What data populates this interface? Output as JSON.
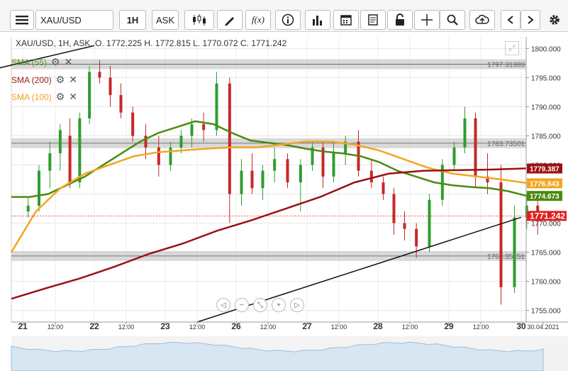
{
  "toolbar": {
    "symbol": "XAU/USD",
    "timeframe": "1H",
    "price_side": "ASK",
    "fx_label": "f(x)"
  },
  "chart_header": {
    "ohlc_text": "XAU/USD, 1H, ASK,   O. 1772.225 H. 1772.815 L. 1770.072 C. 1771.242"
  },
  "indicators": [
    {
      "label": "SMA (55)",
      "color": "#5a9a1a"
    },
    {
      "label": "SMA (200)",
      "color": "#a01818"
    },
    {
      "label": "SMA (100)",
      "color": "#f0a020"
    }
  ],
  "price_tags": [
    {
      "value": "1779.387",
      "price": 1779.387,
      "color": "#9b1111"
    },
    {
      "value": "1776.843",
      "price": 1776.843,
      "color": "#f3a51f"
    },
    {
      "value": "1774.673",
      "price": 1774.673,
      "color": "#4a8a10"
    },
    {
      "value": "1771.242",
      "price": 1771.242,
      "color": "#e21d1d"
    }
  ],
  "chart_data": {
    "type": "candlestick",
    "symbol": "XAU/USD",
    "interval": "1H",
    "side": "ASK",
    "ylim": [
      1753,
      1802
    ],
    "y_ticks": [
      "1800.000",
      "1795.000",
      "1790.000",
      "1785.000",
      "1780.000",
      "1775.000",
      "1770.000",
      "1765.000",
      "1760.000",
      "1755.000"
    ],
    "x_ticks": [
      "21",
      "12:00",
      "22",
      "12:00",
      "23",
      "12:00",
      "26",
      "12:00",
      "27",
      "12:00",
      "28",
      "12:00",
      "29",
      "12:00",
      "30",
      "30.04.2021"
    ],
    "horizontal_levels": [
      {
        "label": "1797.31383",
        "price": 1797.31383
      },
      {
        "label": "1783.73501",
        "price": 1783.73501
      },
      {
        "label": "1764.35451",
        "price": 1764.35451
      }
    ],
    "series": [
      {
        "name": "SMA (55)",
        "values": [
          1774.5,
          1774.5,
          1775,
          1776.5,
          1778,
          1780,
          1782,
          1784,
          1785.5,
          1786.5,
          1787.5,
          1787,
          1785.5,
          1784.2,
          1783.8,
          1783.4,
          1782.8,
          1782.3,
          1782,
          1781.5,
          1780.5,
          1779,
          1778,
          1777,
          1776.5,
          1776.2,
          1776,
          1775.5,
          1774.7
        ]
      },
      {
        "name": "SMA (100)",
        "values": [
          1765,
          1772,
          1776,
          1778.5,
          1780,
          1781.5,
          1782.2,
          1782.5,
          1782.8,
          1783,
          1783,
          1783.5,
          1784,
          1784,
          1783.5,
          1782.5,
          1781,
          1779.5,
          1778.5,
          1778,
          1777.5,
          1776.9
        ]
      },
      {
        "name": "SMA (200)",
        "values": [
          1757,
          1758.8,
          1760.5,
          1762.5,
          1764.7,
          1766.5,
          1768.7,
          1770.5,
          1772.5,
          1774.5,
          1777,
          1778.5,
          1779,
          1779.1,
          1779.2,
          1779.4
        ]
      }
    ],
    "trendlines": [
      {
        "from": [
          "21",
          1796
        ],
        "to": [
          "22",
          1800.5
        ]
      },
      {
        "from": [
          "23 12:00",
          1753
        ],
        "to": [
          "30",
          1771
        ]
      }
    ],
    "ohlc": [
      {
        "x": "21",
        "o": 1772,
        "h": 1774.5,
        "l": 1771,
        "c": 1773
      },
      {
        "x": "21",
        "o": 1773,
        "h": 1780,
        "l": 1772,
        "c": 1779
      },
      {
        "x": "21",
        "o": 1779,
        "h": 1784,
        "l": 1776,
        "c": 1782
      },
      {
        "x": "21 12:00",
        "o": 1782,
        "h": 1787,
        "l": 1779,
        "c": 1786
      },
      {
        "x": "21 12:00",
        "o": 1785,
        "h": 1788,
        "l": 1776,
        "c": 1777
      },
      {
        "x": "21 12:00",
        "o": 1777,
        "h": 1789,
        "l": 1776,
        "c": 1788
      },
      {
        "x": "21 12:00",
        "o": 1788,
        "h": 1797,
        "l": 1787,
        "c": 1796
      },
      {
        "x": "22",
        "o": 1796,
        "h": 1798,
        "l": 1794,
        "c": 1795
      },
      {
        "x": "22",
        "o": 1795,
        "h": 1797,
        "l": 1790,
        "c": 1792
      },
      {
        "x": "22",
        "o": 1792,
        "h": 1794,
        "l": 1788,
        "c": 1789
      },
      {
        "x": "22 12:00",
        "o": 1789,
        "h": 1790,
        "l": 1784,
        "c": 1785
      },
      {
        "x": "22 12:00",
        "o": 1785,
        "h": 1787,
        "l": 1781,
        "c": 1783
      },
      {
        "x": "22 12:00",
        "o": 1783,
        "h": 1785,
        "l": 1778,
        "c": 1780
      },
      {
        "x": "23",
        "o": 1780,
        "h": 1784,
        "l": 1779,
        "c": 1783
      },
      {
        "x": "23",
        "o": 1783,
        "h": 1786,
        "l": 1782,
        "c": 1785
      },
      {
        "x": "23",
        "o": 1785,
        "h": 1788,
        "l": 1783,
        "c": 1787
      },
      {
        "x": "23 12:00",
        "o": 1787,
        "h": 1789,
        "l": 1784,
        "c": 1786
      },
      {
        "x": "23 12:00",
        "o": 1786,
        "h": 1796,
        "l": 1785,
        "c": 1794
      },
      {
        "x": "23 12:00",
        "o": 1794,
        "h": 1795,
        "l": 1770,
        "c": 1775
      },
      {
        "x": "26",
        "o": 1775,
        "h": 1781,
        "l": 1773,
        "c": 1779
      },
      {
        "x": "26",
        "o": 1779,
        "h": 1782,
        "l": 1775,
        "c": 1776
      },
      {
        "x": "26",
        "o": 1776,
        "h": 1780,
        "l": 1774,
        "c": 1779
      },
      {
        "x": "26 12:00",
        "o": 1779,
        "h": 1783,
        "l": 1777,
        "c": 1781
      },
      {
        "x": "26 12:00",
        "o": 1781,
        "h": 1782,
        "l": 1776,
        "c": 1777
      },
      {
        "x": "26 12:00",
        "o": 1777,
        "h": 1781,
        "l": 1772,
        "c": 1780
      },
      {
        "x": "27",
        "o": 1780,
        "h": 1784,
        "l": 1779,
        "c": 1783
      },
      {
        "x": "27",
        "o": 1783,
        "h": 1784,
        "l": 1776,
        "c": 1778
      },
      {
        "x": "27",
        "o": 1778,
        "h": 1784,
        "l": 1777,
        "c": 1782
      },
      {
        "x": "27 12:00",
        "o": 1782,
        "h": 1785,
        "l": 1780,
        "c": 1784
      },
      {
        "x": "27 12:00",
        "o": 1784,
        "h": 1786,
        "l": 1778,
        "c": 1779
      },
      {
        "x": "27 12:00",
        "o": 1779,
        "h": 1781,
        "l": 1776,
        "c": 1777
      },
      {
        "x": "28",
        "o": 1777,
        "h": 1778,
        "l": 1774,
        "c": 1775
      },
      {
        "x": "28",
        "o": 1775,
        "h": 1776,
        "l": 1768,
        "c": 1770
      },
      {
        "x": "28",
        "o": 1770,
        "h": 1772,
        "l": 1767,
        "c": 1769
      },
      {
        "x": "28 12:00",
        "o": 1769,
        "h": 1770,
        "l": 1764,
        "c": 1766
      },
      {
        "x": "28 12:00",
        "o": 1766,
        "h": 1775,
        "l": 1765,
        "c": 1774
      },
      {
        "x": "28 12:00",
        "o": 1774,
        "h": 1781,
        "l": 1773,
        "c": 1780
      },
      {
        "x": "29",
        "o": 1780,
        "h": 1784,
        "l": 1779,
        "c": 1783
      },
      {
        "x": "29",
        "o": 1783,
        "h": 1790,
        "l": 1782,
        "c": 1788
      },
      {
        "x": "29",
        "o": 1788,
        "h": 1789,
        "l": 1776,
        "c": 1778
      },
      {
        "x": "29 12:00",
        "o": 1778,
        "h": 1782,
        "l": 1775,
        "c": 1777
      },
      {
        "x": "29 12:00",
        "o": 1777,
        "h": 1780,
        "l": 1756,
        "c": 1759
      },
      {
        "x": "29 12:00",
        "o": 1759,
        "h": 1773,
        "l": 1758,
        "c": 1771
      },
      {
        "x": "30",
        "o": 1771,
        "h": 1775,
        "l": 1769,
        "c": 1773
      },
      {
        "x": "30",
        "o": 1773,
        "h": 1774,
        "l": 1768,
        "c": 1771.242
      }
    ]
  }
}
